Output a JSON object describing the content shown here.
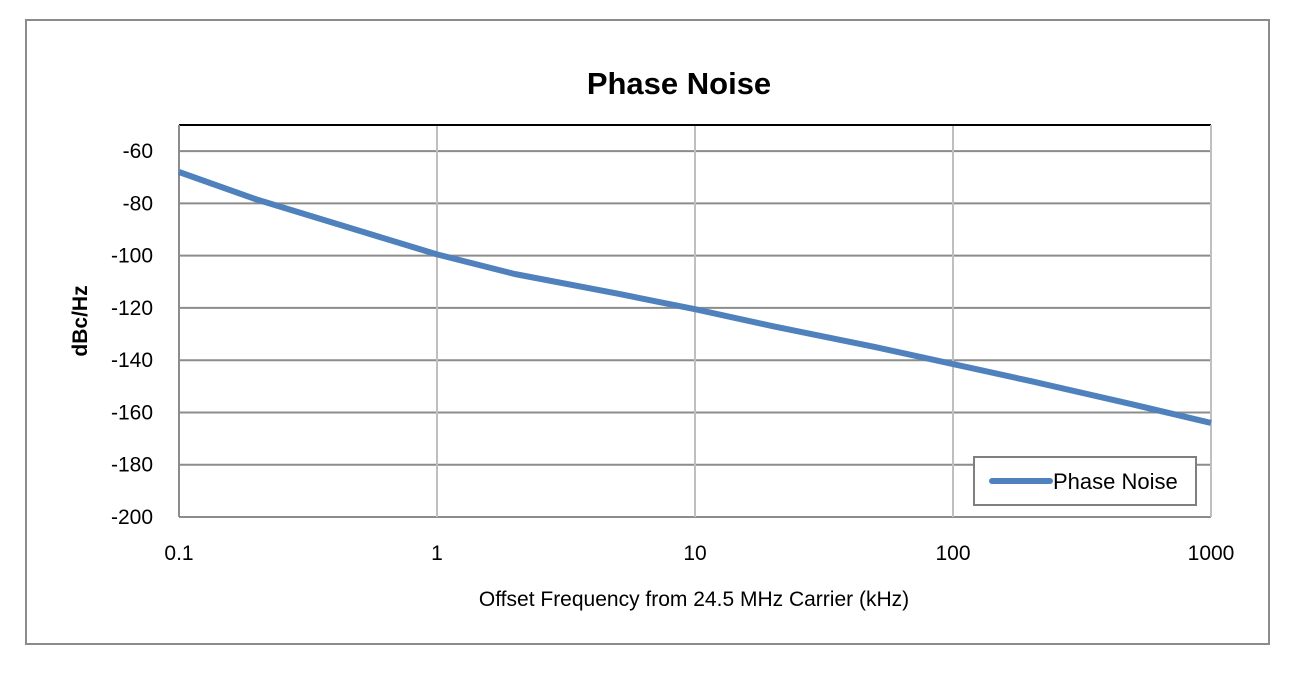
{
  "chart_data": {
    "type": "line",
    "title": "Phase Noise",
    "xlabel": "Offset Frequency from 24.5 MHz Carrier (kHz)",
    "ylabel": "dBc/Hz",
    "x_scale": "log",
    "xlim": [
      0.1,
      1000
    ],
    "ylim": [
      -200,
      -50
    ],
    "x_ticks": [
      "0.1",
      "1",
      "10",
      "100",
      "1000"
    ],
    "y_ticks": [
      "-60",
      "-80",
      "-100",
      "-120",
      "-140",
      "-160",
      "-180",
      "-200"
    ],
    "grid": true,
    "legend_position": "bottom-right",
    "series": [
      {
        "name": "Phase Noise",
        "color": "#4f81bd",
        "x": [
          0.1,
          0.2,
          0.5,
          1,
          2,
          5,
          10,
          20,
          50,
          100,
          200,
          500,
          1000
        ],
        "y": [
          -68,
          -78.5,
          -90.5,
          -99.5,
          -107,
          -114.5,
          -120.5,
          -127,
          -135,
          -141.5,
          -148,
          -157,
          -164
        ]
      }
    ]
  }
}
